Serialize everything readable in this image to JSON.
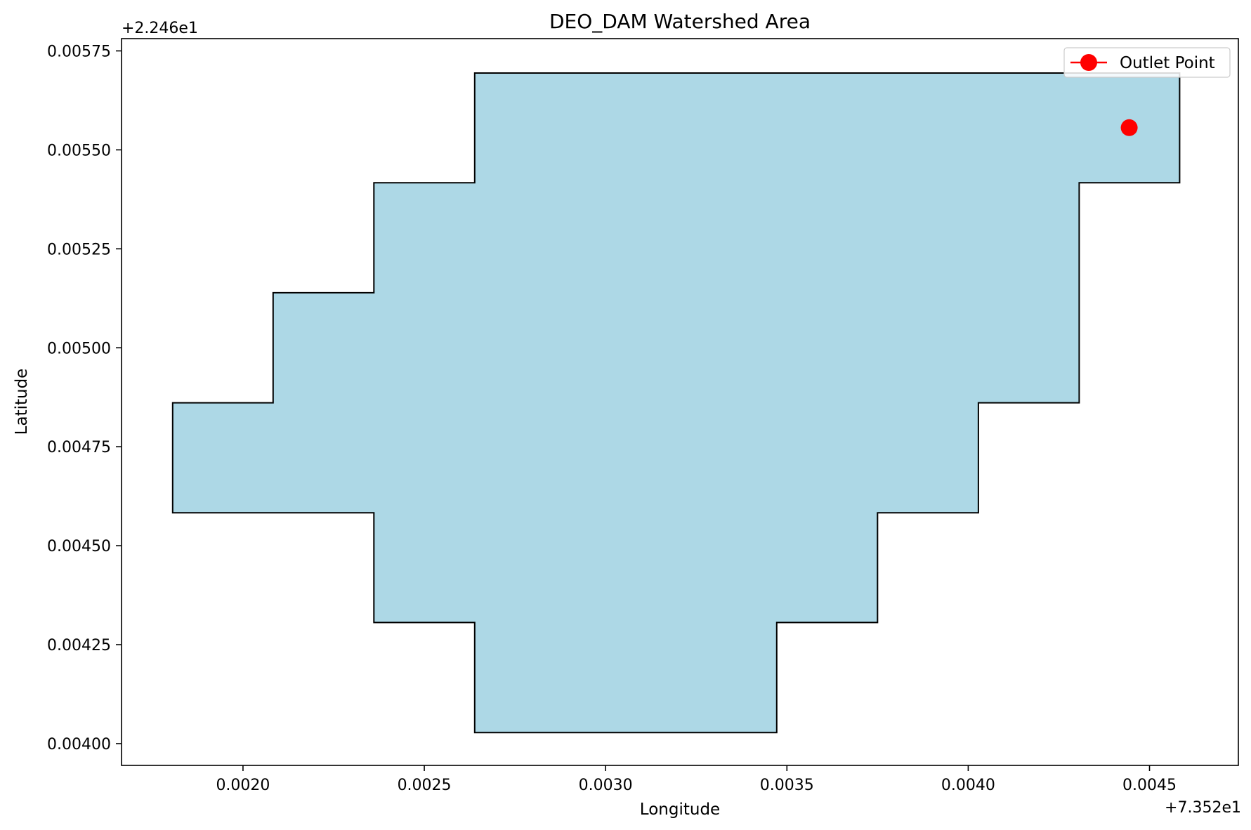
{
  "chart_data": {
    "type": "area",
    "title": "DEO_DAM Watershed Area",
    "xlabel": "Longitude",
    "ylabel": "Latitude",
    "x_offset_label": "+7.352e1",
    "y_offset_label": "+2.246e1",
    "x_ticks": [
      "0.0020",
      "0.0025",
      "0.0030",
      "0.0035",
      "0.0040",
      "0.0045"
    ],
    "y_ticks": [
      "0.00400",
      "0.00425",
      "0.00450",
      "0.00475",
      "0.00500",
      "0.00525",
      "0.00550",
      "0.00575"
    ],
    "xlim": [
      0.001665,
      0.004745
    ],
    "ylim": [
      0.003945,
      0.005781
    ],
    "grid": false,
    "legend_position": "top-right",
    "fill_color": "#add8e6",
    "edge_color": "#000000",
    "watershed_polygon": [
      [
        0.002639,
        0.005694
      ],
      [
        0.004583,
        0.005694
      ],
      [
        0.004583,
        0.005417
      ],
      [
        0.004306,
        0.005417
      ],
      [
        0.004306,
        0.004861
      ],
      [
        0.004028,
        0.004861
      ],
      [
        0.004028,
        0.004583
      ],
      [
        0.00375,
        0.004583
      ],
      [
        0.00375,
        0.004306
      ],
      [
        0.003472,
        0.004306
      ],
      [
        0.003472,
        0.004028
      ],
      [
        0.002639,
        0.004028
      ],
      [
        0.002639,
        0.004306
      ],
      [
        0.002361,
        0.004306
      ],
      [
        0.002361,
        0.004583
      ],
      [
        0.001806,
        0.004583
      ],
      [
        0.001806,
        0.004861
      ],
      [
        0.002083,
        0.004861
      ],
      [
        0.002083,
        0.005139
      ],
      [
        0.002361,
        0.005139
      ],
      [
        0.002361,
        0.005417
      ],
      [
        0.002639,
        0.005417
      ]
    ],
    "outlet_point": {
      "name": "Outlet Point",
      "x": 0.004444,
      "y": 0.005556,
      "color": "#ff0000"
    }
  }
}
